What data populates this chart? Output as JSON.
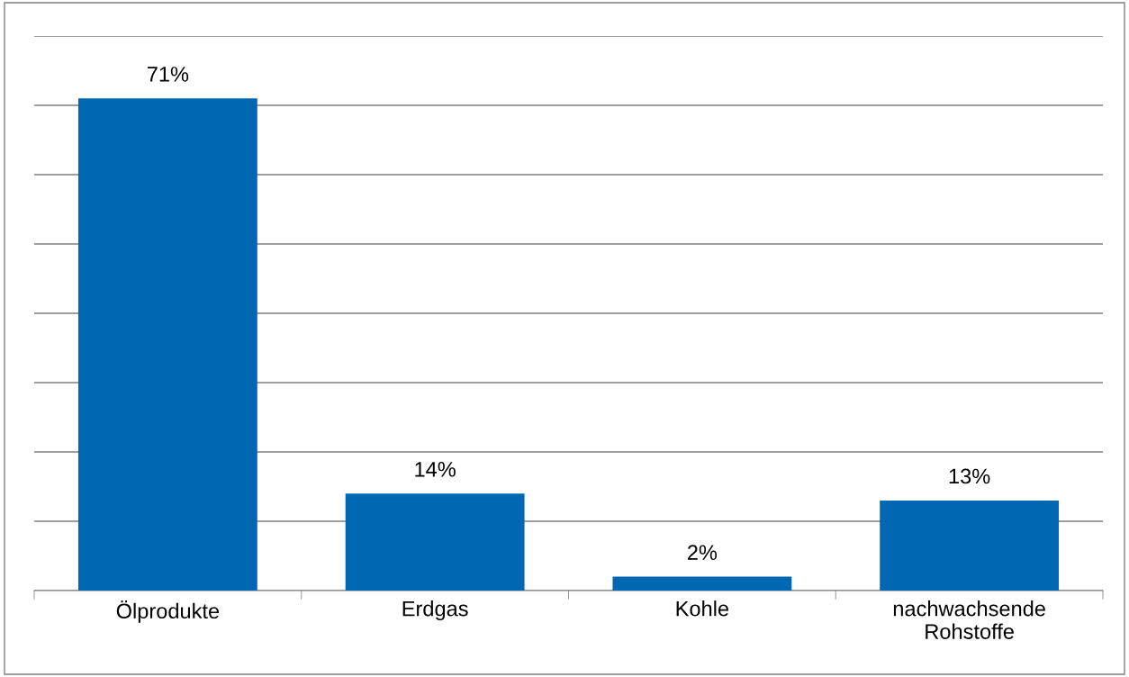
{
  "chart_data": {
    "type": "bar",
    "categories": [
      "Ölprodukte",
      "Erdgas",
      "Kohle",
      "nachwachsende\nRohstoffe"
    ],
    "values": [
      71,
      14,
      2,
      13
    ],
    "value_labels": [
      "71%",
      "14%",
      "2%",
      "13%"
    ],
    "color": "#0068b2",
    "ylim": [
      0,
      80
    ],
    "yticks": [
      {
        "value": 0,
        "label": null
      },
      {
        "value": 10,
        "label": null
      },
      {
        "value": 20,
        "label": null
      },
      {
        "value": 30,
        "label": null
      },
      {
        "value": 40,
        "label": null
      },
      {
        "value": 50,
        "label": null
      },
      {
        "value": 60,
        "label": null
      },
      {
        "value": 70,
        "label": null
      },
      {
        "value": 80,
        "label": null
      }
    ],
    "grid": "y",
    "tick_labels": "x"
  }
}
